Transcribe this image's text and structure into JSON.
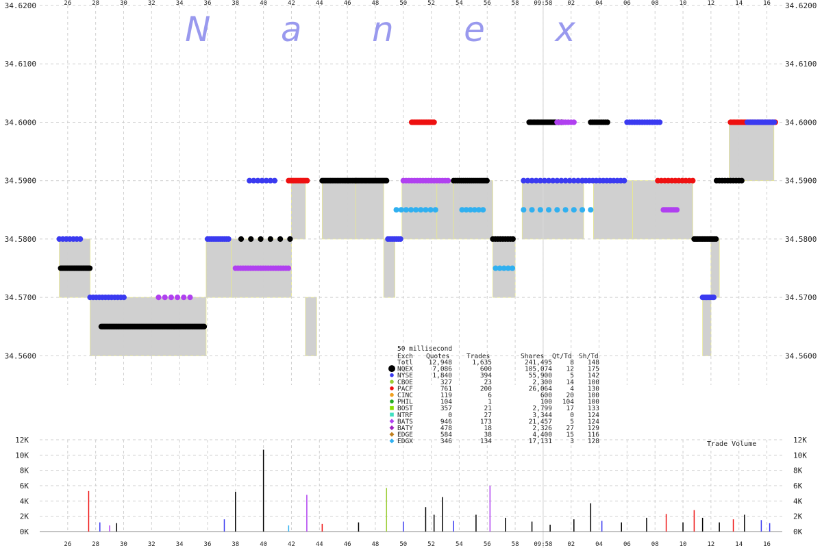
{
  "chart_data": {
    "type": "scatter",
    "watermark": "N a n e x",
    "x_ticks_top": [
      "26",
      "28",
      "30",
      "32",
      "34",
      "36",
      "38",
      "40",
      "42",
      "44",
      "46",
      "48",
      "50",
      "52",
      "54",
      "56",
      "58",
      "09:58",
      "02",
      "04",
      "06",
      "08",
      "10",
      "12",
      "14",
      "16"
    ],
    "x_ticks_bottom": [
      "26",
      "28",
      "30",
      "32",
      "34",
      "36",
      "38",
      "40",
      "42",
      "44",
      "46",
      "48",
      "50",
      "52",
      "54",
      "56",
      "58",
      "09:58",
      "02",
      "04",
      "06",
      "08",
      "10",
      "12",
      "14",
      "16"
    ],
    "price_axis": {
      "ticks": [
        "34.6200",
        "34.6100",
        "34.6000",
        "34.5900",
        "34.5800",
        "34.5700",
        "34.5600"
      ],
      "ylim": [
        34.555,
        34.62
      ]
    },
    "volume_axis": {
      "label": "Trade Volume",
      "ticks": [
        "12K",
        "10K",
        "8K",
        "6K",
        "4K",
        "2K",
        "0K"
      ],
      "ylim": [
        0,
        12000
      ]
    },
    "nbbo_bands": [
      {
        "x0": 25.4,
        "x1": 27.6,
        "lo": 34.57,
        "hi": 34.58
      },
      {
        "x0": 27.6,
        "x1": 35.9,
        "lo": 34.56,
        "hi": 34.57
      },
      {
        "x0": 35.9,
        "x1": 37.7,
        "lo": 34.57,
        "hi": 34.58
      },
      {
        "x0": 37.7,
        "x1": 42.0,
        "lo": 34.57,
        "hi": 34.58
      },
      {
        "x0": 42.0,
        "x1": 43.0,
        "lo": 34.58,
        "hi": 34.59
      },
      {
        "x0": 43.0,
        "x1": 43.8,
        "lo": 34.56,
        "hi": 34.57
      },
      {
        "x0": 44.2,
        "x1": 46.6,
        "lo": 34.58,
        "hi": 34.59
      },
      {
        "x0": 46.6,
        "x1": 48.6,
        "lo": 34.58,
        "hi": 34.59
      },
      {
        "x0": 48.6,
        "x1": 49.4,
        "lo": 34.57,
        "hi": 34.58
      },
      {
        "x0": 49.9,
        "x1": 52.4,
        "lo": 34.58,
        "hi": 34.59
      },
      {
        "x0": 52.4,
        "x1": 53.6,
        "lo": 34.58,
        "hi": 34.59
      },
      {
        "x0": 53.6,
        "x1": 56.4,
        "lo": 34.58,
        "hi": 34.59
      },
      {
        "x0": 56.4,
        "x1": 58.0,
        "lo": 34.57,
        "hi": 34.58
      },
      {
        "x0": 58.5,
        "x1": 62.9,
        "lo": 34.58,
        "hi": 34.59
      },
      {
        "x0": 63.6,
        "x1": 66.4,
        "lo": 34.58,
        "hi": 34.59
      },
      {
        "x0": 66.4,
        "x1": 70.7,
        "lo": 34.58,
        "hi": 34.59
      },
      {
        "x0": 71.4,
        "x1": 72.0,
        "lo": 34.56,
        "hi": 34.57
      },
      {
        "x0": 72.0,
        "x1": 72.6,
        "lo": 34.57,
        "hi": 34.58
      },
      {
        "x0": 73.3,
        "x1": 76.5,
        "lo": 34.59,
        "hi": 34.6
      }
    ],
    "stats_table": {
      "caption": "50 millisecond",
      "headers": [
        "Exch",
        "Quotes",
        "Trades",
        "Shares",
        "Qt/Td",
        "Sh/Td"
      ],
      "rows": [
        {
          "exch": "Totl",
          "quotes": "12,948",
          "trades": "1,635",
          "shares": "241,495",
          "qt_td": "8",
          "sh_td": "148",
          "color": "",
          "marker": "none"
        },
        {
          "exch": "NQEX",
          "quotes": "7,086",
          "trades": "600",
          "shares": "105,074",
          "qt_td": "12",
          "sh_td": "175",
          "color": "#000000",
          "marker": "big"
        },
        {
          "exch": "NYSE",
          "quotes": "1,840",
          "trades": "394",
          "shares": "55,900",
          "qt_td": "5",
          "sh_td": "142",
          "color": "#3a3af0",
          "marker": "circle"
        },
        {
          "exch": "CBOE",
          "quotes": "327",
          "trades": "23",
          "shares": "2,300",
          "qt_td": "14",
          "sh_td": "100",
          "color": "#9acd32",
          "marker": "circle"
        },
        {
          "exch": "PACF",
          "quotes": "761",
          "trades": "200",
          "shares": "26,064",
          "qt_td": "4",
          "sh_td": "130",
          "color": "#ee1111",
          "marker": "circle"
        },
        {
          "exch": "CINC",
          "quotes": "119",
          "trades": "6",
          "shares": "600",
          "qt_td": "20",
          "sh_td": "100",
          "color": "#f0a020",
          "marker": "circle"
        },
        {
          "exch": "PHIL",
          "quotes": "104",
          "trades": "1",
          "shares": "100",
          "qt_td": "104",
          "sh_td": "100",
          "color": "#22aa22",
          "marker": "circle"
        },
        {
          "exch": "BOST",
          "quotes": "357",
          "trades": "21",
          "shares": "2,799",
          "qt_td": "17",
          "sh_td": "133",
          "color": "#88dd00",
          "marker": "square"
        },
        {
          "exch": "NTRF",
          "quotes": "0",
          "trades": "27",
          "shares": "3,344",
          "qt_td": "0",
          "sh_td": "124",
          "color": "#40e0c0",
          "marker": "square"
        },
        {
          "exch": "BATS",
          "quotes": "946",
          "trades": "173",
          "shares": "21,457",
          "qt_td": "5",
          "sh_td": "124",
          "color": "#b040f0",
          "marker": "diamond"
        },
        {
          "exch": "BATY",
          "quotes": "478",
          "trades": "18",
          "shares": "2,326",
          "qt_td": "27",
          "sh_td": "129",
          "color": "#a020c0",
          "marker": "diamond"
        },
        {
          "exch": "EDGE",
          "quotes": "584",
          "trades": "38",
          "shares": "4,400",
          "qt_td": "15",
          "sh_td": "116",
          "color": "#c08020",
          "marker": "diamond"
        },
        {
          "exch": "EDGX",
          "quotes": "346",
          "trades": "134",
          "shares": "17,131",
          "qt_td": "3",
          "sh_td": "128",
          "color": "#30b0f0",
          "marker": "diamond"
        }
      ]
    },
    "quote_clusters": [
      {
        "x0": 25.5,
        "x1": 27.6,
        "y": 34.575,
        "color": "#000000",
        "step": 0.08
      },
      {
        "x0": 25.4,
        "x1": 27.0,
        "y": 34.58,
        "color": "#3a3af0",
        "step": 0.25
      },
      {
        "x0": 27.6,
        "x1": 30.2,
        "y": 34.57,
        "color": "#3a3af0",
        "step": 0.22
      },
      {
        "x0": 28.4,
        "x1": 35.8,
        "y": 34.565,
        "color": "#000000",
        "step": 0.08
      },
      {
        "x0": 32.5,
        "x1": 34.8,
        "y": 34.57,
        "color": "#b040f0",
        "step": 0.45
      },
      {
        "x0": 36.0,
        "x1": 37.6,
        "y": 34.58,
        "color": "#3a3af0",
        "step": 0.15
      },
      {
        "x0": 38.0,
        "x1": 41.8,
        "y": 34.575,
        "color": "#b040f0",
        "step": 0.18
      },
      {
        "x0": 38.4,
        "x1": 42.0,
        "y": 34.58,
        "color": "#000000",
        "step": 0.7
      },
      {
        "x0": 39.0,
        "x1": 40.8,
        "y": 34.59,
        "color": "#3a3af0",
        "step": 0.3
      },
      {
        "x0": 41.8,
        "x1": 43.2,
        "y": 34.59,
        "color": "#ee1111",
        "step": 0.12
      },
      {
        "x0": 44.2,
        "x1": 46.6,
        "y": 34.59,
        "color": "#000000",
        "step": 0.12
      },
      {
        "x0": 46.6,
        "x1": 48.8,
        "y": 34.59,
        "color": "#000000",
        "step": 0.1
      },
      {
        "x0": 48.9,
        "x1": 49.9,
        "y": 34.58,
        "color": "#3a3af0",
        "step": 0.15
      },
      {
        "x0": 50.0,
        "x1": 53.2,
        "y": 34.59,
        "color": "#b040f0",
        "step": 0.2
      },
      {
        "x0": 50.6,
        "x1": 52.2,
        "y": 34.6,
        "color": "#ee1111",
        "step": 0.08
      },
      {
        "x0": 53.6,
        "x1": 56.0,
        "y": 34.59,
        "color": "#000000",
        "step": 0.14
      },
      {
        "x0": 49.5,
        "x1": 52.4,
        "y": 34.585,
        "color": "#30b0f0",
        "step": 0.35
      },
      {
        "x0": 54.2,
        "x1": 55.8,
        "y": 34.585,
        "color": "#30b0f0",
        "step": 0.3
      },
      {
        "x0": 56.4,
        "x1": 58.0,
        "y": 34.58,
        "color": "#000000",
        "step": 0.18
      },
      {
        "x0": 56.6,
        "x1": 57.8,
        "y": 34.575,
        "color": "#30b0f0",
        "step": 0.3
      },
      {
        "x0": 59.0,
        "x1": 61.4,
        "y": 34.6,
        "color": "#000000",
        "step": 0.1
      },
      {
        "x0": 61.0,
        "x1": 62.2,
        "y": 34.6,
        "color": "#b040f0",
        "step": 0.2
      },
      {
        "x0": 58.6,
        "x1": 62.8,
        "y": 34.59,
        "color": "#3a3af0",
        "step": 0.3
      },
      {
        "x0": 58.6,
        "x1": 63.4,
        "y": 34.585,
        "color": "#30b0f0",
        "step": 0.6
      },
      {
        "x0": 62.8,
        "x1": 66.0,
        "y": 34.59,
        "color": "#3a3af0",
        "step": 0.25
      },
      {
        "x0": 63.4,
        "x1": 64.6,
        "y": 34.6,
        "color": "#000000",
        "step": 0.15
      },
      {
        "x0": 66.0,
        "x1": 68.4,
        "y": 34.6,
        "color": "#3a3af0",
        "step": 0.18
      },
      {
        "x0": 68.2,
        "x1": 70.8,
        "y": 34.59,
        "color": "#ee1111",
        "step": 0.25
      },
      {
        "x0": 68.6,
        "x1": 69.6,
        "y": 34.585,
        "color": "#b040f0",
        "step": 0.12
      },
      {
        "x0": 70.8,
        "x1": 72.4,
        "y": 34.58,
        "color": "#000000",
        "step": 0.12
      },
      {
        "x0": 71.4,
        "x1": 72.2,
        "y": 34.57,
        "color": "#3a3af0",
        "step": 0.1
      },
      {
        "x0": 72.4,
        "x1": 74.2,
        "y": 34.59,
        "color": "#000000",
        "step": 0.2
      },
      {
        "x0": 73.4,
        "x1": 76.6,
        "y": 34.6,
        "color": "#ee1111",
        "step": 0.1
      },
      {
        "x0": 74.6,
        "x1": 76.6,
        "y": 34.6,
        "color": "#3a3af0",
        "step": 0.12
      }
    ],
    "volume_spikes": [
      {
        "x": 27.5,
        "v": 5300,
        "color": "#ee1111"
      },
      {
        "x": 28.3,
        "v": 1200,
        "color": "#3a3af0"
      },
      {
        "x": 29.0,
        "v": 800,
        "color": "#b040f0"
      },
      {
        "x": 29.5,
        "v": 1100,
        "color": "#000000"
      },
      {
        "x": 37.2,
        "v": 1600,
        "color": "#3a3af0"
      },
      {
        "x": 38.0,
        "v": 5200,
        "color": "#000000"
      },
      {
        "x": 40.0,
        "v": 10700,
        "color": "#000000"
      },
      {
        "x": 41.8,
        "v": 800,
        "color": "#30b0f0"
      },
      {
        "x": 43.1,
        "v": 4800,
        "color": "#b040f0"
      },
      {
        "x": 44.2,
        "v": 1000,
        "color": "#ee1111"
      },
      {
        "x": 46.8,
        "v": 1200,
        "color": "#000000"
      },
      {
        "x": 48.8,
        "v": 5700,
        "color": "#9acd32"
      },
      {
        "x": 50.0,
        "v": 1300,
        "color": "#3a3af0"
      },
      {
        "x": 51.6,
        "v": 3200,
        "color": "#000000"
      },
      {
        "x": 52.2,
        "v": 2200,
        "color": "#000000"
      },
      {
        "x": 52.8,
        "v": 4500,
        "color": "#000000"
      },
      {
        "x": 53.6,
        "v": 1400,
        "color": "#3a3af0"
      },
      {
        "x": 55.2,
        "v": 2200,
        "color": "#000000"
      },
      {
        "x": 56.2,
        "v": 6000,
        "color": "#b040f0"
      },
      {
        "x": 57.3,
        "v": 1800,
        "color": "#000000"
      },
      {
        "x": 59.2,
        "v": 1300,
        "color": "#000000"
      },
      {
        "x": 60.5,
        "v": 900,
        "color": "#000000"
      },
      {
        "x": 62.2,
        "v": 1600,
        "color": "#000000"
      },
      {
        "x": 63.4,
        "v": 3700,
        "color": "#000000"
      },
      {
        "x": 64.2,
        "v": 1400,
        "color": "#3a3af0"
      },
      {
        "x": 65.6,
        "v": 1200,
        "color": "#000000"
      },
      {
        "x": 67.4,
        "v": 1800,
        "color": "#000000"
      },
      {
        "x": 68.8,
        "v": 2300,
        "color": "#ee1111"
      },
      {
        "x": 70.0,
        "v": 1200,
        "color": "#000000"
      },
      {
        "x": 70.8,
        "v": 2800,
        "color": "#ee1111"
      },
      {
        "x": 71.4,
        "v": 1800,
        "color": "#000000"
      },
      {
        "x": 72.6,
        "v": 1200,
        "color": "#000000"
      },
      {
        "x": 73.6,
        "v": 1600,
        "color": "#ee1111"
      },
      {
        "x": 74.4,
        "v": 2200,
        "color": "#000000"
      },
      {
        "x": 75.6,
        "v": 1500,
        "color": "#3a3af0"
      },
      {
        "x": 76.2,
        "v": 1100,
        "color": "#3a3af0"
      }
    ]
  }
}
